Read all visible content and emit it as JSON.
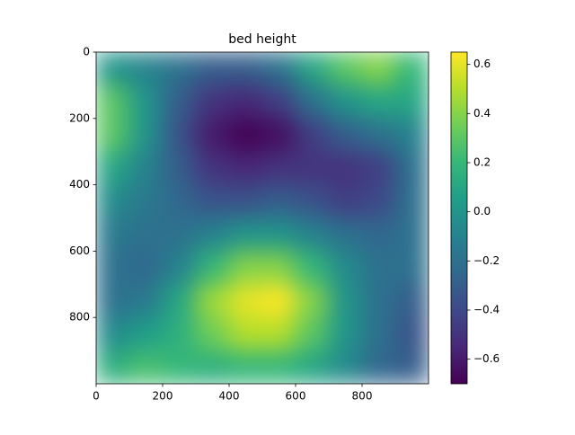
{
  "chart_data": {
    "type": "heatmap",
    "title": "bed height",
    "cmap": "viridis",
    "xlim": [
      0,
      1000
    ],
    "ylim": [
      1000,
      0
    ],
    "xticks": [
      0,
      200,
      400,
      600,
      800
    ],
    "yticks": [
      0,
      200,
      400,
      600,
      800
    ],
    "clim": [
      -0.7,
      0.65
    ],
    "cticks": [
      {
        "value": -0.6,
        "label": "−0.6"
      },
      {
        "value": -0.4,
        "label": "−0.4"
      },
      {
        "value": -0.2,
        "label": "−0.2"
      },
      {
        "value": 0,
        "label": "0.0"
      },
      0.2,
      0.4,
      0.6
    ],
    "z": [
      [
        0.0,
        -0.1,
        -0.2,
        -0.3,
        -0.3,
        -0.2,
        0.1,
        0.3,
        0.4,
        0.2
      ],
      [
        0.3,
        0.0,
        -0.3,
        -0.5,
        -0.55,
        -0.45,
        -0.2,
        0.0,
        0.1,
        0.1
      ],
      [
        0.3,
        0.0,
        -0.35,
        -0.6,
        -0.7,
        -0.65,
        -0.45,
        -0.3,
        -0.2,
        -0.1
      ],
      [
        0.1,
        -0.1,
        -0.3,
        -0.5,
        -0.55,
        -0.5,
        -0.5,
        -0.5,
        -0.45,
        -0.2
      ],
      [
        -0.05,
        -0.15,
        -0.25,
        -0.35,
        -0.35,
        -0.3,
        -0.35,
        -0.45,
        -0.4,
        -0.2
      ],
      [
        -0.15,
        -0.2,
        -0.2,
        -0.1,
        0.0,
        0.0,
        -0.1,
        -0.2,
        -0.25,
        -0.2
      ],
      [
        -0.2,
        -0.25,
        -0.1,
        0.2,
        0.4,
        0.4,
        0.2,
        -0.05,
        -0.2,
        -0.2
      ],
      [
        -0.2,
        -0.15,
        0.1,
        0.45,
        0.6,
        0.65,
        0.4,
        0.0,
        -0.2,
        -0.3
      ],
      [
        -0.05,
        0.05,
        0.15,
        0.35,
        0.5,
        0.5,
        0.3,
        0.0,
        -0.2,
        -0.35
      ],
      [
        0.15,
        0.25,
        0.2,
        0.15,
        0.2,
        0.2,
        0.1,
        -0.05,
        -0.25,
        -0.3
      ]
    ]
  }
}
